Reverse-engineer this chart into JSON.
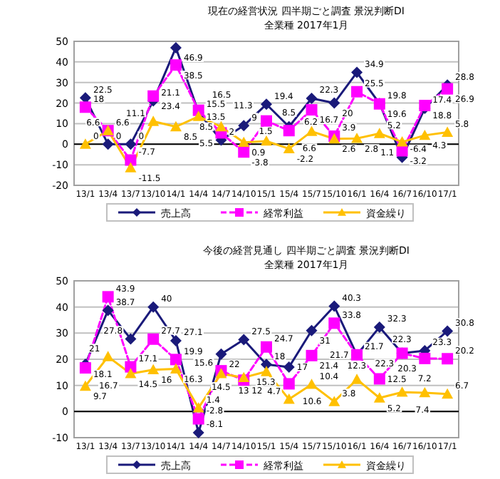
{
  "chart_data": [
    {
      "type": "line",
      "title": "現在の経営状況 四半期ごと調査 景況判断DI",
      "subtitle": "全業種 2017年1月",
      "categories": [
        "13/1",
        "13/4",
        "13/7",
        "13/10",
        "14/1",
        "14/4",
        "14/7",
        "14/10",
        "15/1",
        "15/4",
        "15/7",
        "15/10",
        "16/1",
        "16/4",
        "16/7",
        "16/10",
        "17/1"
      ],
      "series": [
        {
          "name": "売上高",
          "color": "#1a1a7a",
          "marker": "diamond",
          "line_style": "solid",
          "values": [
            22.5,
            0.0,
            0.0,
            21.1,
            46.9,
            15.5,
            2.0,
            9.0,
            19.4,
            8.5,
            22.3,
            20.0,
            34.9,
            19.8,
            -6.4,
            17.4,
            28.8
          ]
        },
        {
          "name": "経常利益",
          "color": "#ff00ff",
          "marker": "square",
          "line_style": "dashed",
          "values": [
            18.0,
            6.6,
            -7.7,
            23.4,
            38.5,
            16.5,
            5.5,
            -3.8,
            11.3,
            6.6,
            16.7,
            3.9,
            25.5,
            19.6,
            -3.2,
            18.8,
            26.9
          ]
        },
        {
          "name": "資金繰り",
          "color": "#ffc000",
          "marker": "triangle",
          "line_style": "solid",
          "values": [
            0.0,
            6.6,
            -11.5,
            11.1,
            8.5,
            13.5,
            8.5,
            0.9,
            1.5,
            -2.2,
            6.2,
            2.6,
            2.8,
            5.2,
            1.1,
            4.3,
            5.8
          ]
        }
      ],
      "ylim": [
        -20,
        50
      ],
      "yticks": [
        -20,
        -10,
        0,
        10,
        20,
        30,
        40,
        50
      ],
      "grid": "y",
      "legend": "bottom",
      "data_labels": true
    },
    {
      "type": "line",
      "title": "今後の経営見通し 四半期ごと調査 景況判断DI",
      "subtitle": "全業種 2017年1月",
      "categories": [
        "13/1",
        "13/4",
        "13/7",
        "13/10",
        "14/1",
        "14/4",
        "14/7",
        "14/10",
        "15/1",
        "15/4",
        "15/7",
        "15/10",
        "16/1",
        "16/4",
        "16/7",
        "16/10",
        "17/1"
      ],
      "series": [
        {
          "name": "売上高",
          "color": "#1a1a7a",
          "marker": "diamond",
          "line_style": "solid",
          "values": [
            18.1,
            38.7,
            27.8,
            40,
            27.1,
            -8.1,
            22,
            27.5,
            18,
            17,
            31,
            40.3,
            21.7,
            32.3,
            22.3,
            23.3,
            30.8
          ]
        },
        {
          "name": "経常利益",
          "color": "#ff00ff",
          "marker": "square",
          "line_style": "dashed",
          "values": [
            16.7,
            43.9,
            17.1,
            27.7,
            19.9,
            -2.8,
            15.6,
            12,
            24.7,
            10.6,
            21.4,
            33.8,
            21.7,
            12.5,
            22.3,
            20.3,
            20.2
          ]
        },
        {
          "name": "資金繰り",
          "color": "#ffc000",
          "marker": "triangle",
          "line_style": "solid",
          "values": [
            9.7,
            21,
            14.5,
            16,
            16.3,
            1.4,
            14.5,
            13,
            15.3,
            4.7,
            10.4,
            3.8,
            12.3,
            5.2,
            7.4,
            7.2,
            6.7
          ]
        }
      ],
      "ylim": [
        -10,
        50
      ],
      "yticks": [
        -10,
        0,
        10,
        20,
        30,
        40,
        50
      ],
      "grid": "y",
      "legend": "bottom",
      "data_labels": true
    }
  ]
}
